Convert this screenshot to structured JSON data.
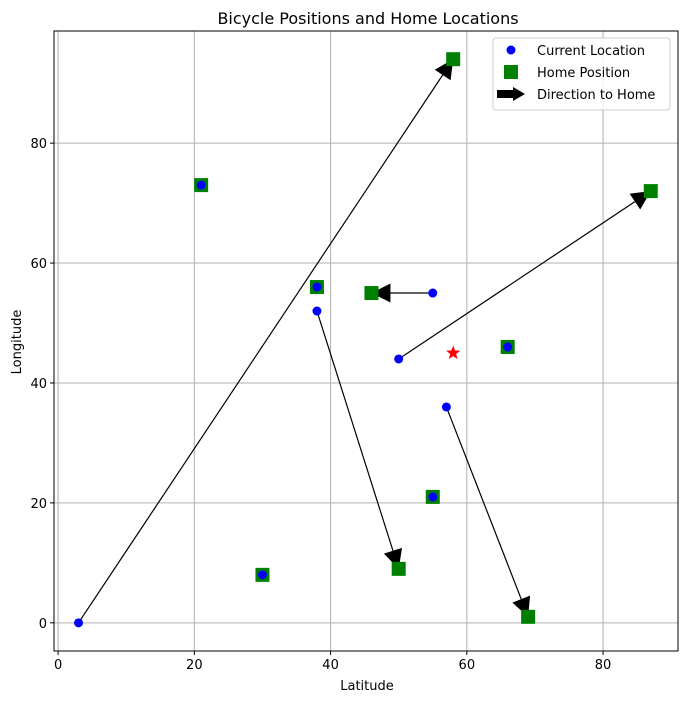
{
  "chart_data": {
    "type": "scatter",
    "title": "Bicycle Positions and Home Locations",
    "xlabel": "Latitude",
    "ylabel": "Longitude",
    "xlim": [
      -0.6,
      91
    ],
    "ylim": [
      -4.7,
      98.7
    ],
    "xticks": [
      0,
      20,
      40,
      60,
      80
    ],
    "yticks": [
      0,
      20,
      40,
      60,
      80
    ],
    "grid": true,
    "legend_position": "top-right",
    "legend": [
      {
        "label": "Current Location",
        "marker": "circle",
        "color": "#0000ff"
      },
      {
        "label": "Home Position",
        "marker": "square",
        "color": "#008000"
      },
      {
        "label": "Direction to Home",
        "marker": "arrow",
        "color": "#000000"
      }
    ],
    "current_locations": [
      {
        "x": 3,
        "y": 0
      },
      {
        "x": 21,
        "y": 73
      },
      {
        "x": 30,
        "y": 8
      },
      {
        "x": 38,
        "y": 56
      },
      {
        "x": 38,
        "y": 52
      },
      {
        "x": 50,
        "y": 44
      },
      {
        "x": 55,
        "y": 55
      },
      {
        "x": 55,
        "y": 21
      },
      {
        "x": 57,
        "y": 36
      },
      {
        "x": 66,
        "y": 46
      }
    ],
    "home_positions": [
      {
        "x": 58,
        "y": 94
      },
      {
        "x": 21,
        "y": 73
      },
      {
        "x": 30,
        "y": 8
      },
      {
        "x": 38,
        "y": 56
      },
      {
        "x": 50,
        "y": 9
      },
      {
        "x": 87,
        "y": 72
      },
      {
        "x": 46,
        "y": 55
      },
      {
        "x": 55,
        "y": 21
      },
      {
        "x": 69,
        "y": 1
      },
      {
        "x": 66,
        "y": 46
      }
    ],
    "arrows": [
      {
        "from": [
          3,
          0
        ],
        "to": [
          58,
          94
        ]
      },
      {
        "from": [
          38,
          52
        ],
        "to": [
          50,
          9
        ]
      },
      {
        "from": [
          50,
          44
        ],
        "to": [
          87,
          72
        ]
      },
      {
        "from": [
          55,
          55
        ],
        "to": [
          46,
          55
        ]
      },
      {
        "from": [
          57,
          36
        ],
        "to": [
          69,
          1
        ]
      }
    ],
    "star_marker": {
      "x": 58,
      "y": 45,
      "color": "#ff0000"
    },
    "colors": {
      "current": "#0000ff",
      "home": "#008000",
      "arrow": "#000000",
      "star": "#ff0000",
      "grid": "#b0b0b0"
    }
  }
}
